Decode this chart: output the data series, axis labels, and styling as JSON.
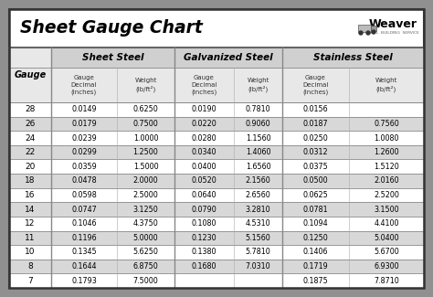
{
  "title": "Sheet Gauge Chart",
  "bg_outer": "#909090",
  "bg_inner": "#ffffff",
  "section_headers": [
    "Sheet Steel",
    "Galvanized Steel",
    "Stainless Steel"
  ],
  "gauges": [
    28,
    26,
    24,
    22,
    20,
    18,
    16,
    14,
    12,
    11,
    10,
    8,
    7
  ],
  "sheet_steel": [
    [
      "0.0149",
      "0.6250"
    ],
    [
      "0.0179",
      "0.7500"
    ],
    [
      "0.0239",
      "1.0000"
    ],
    [
      "0.0299",
      "1.2500"
    ],
    [
      "0.0359",
      "1.5000"
    ],
    [
      "0.0478",
      "2.0000"
    ],
    [
      "0.0598",
      "2.5000"
    ],
    [
      "0.0747",
      "3.1250"
    ],
    [
      "0.1046",
      "4.3750"
    ],
    [
      "0.1196",
      "5.0000"
    ],
    [
      "0.1345",
      "5.6250"
    ],
    [
      "0.1644",
      "6.8750"
    ],
    [
      "0.1793",
      "7.5000"
    ]
  ],
  "galvanized_steel": [
    [
      "0.0190",
      "0.7810"
    ],
    [
      "0.0220",
      "0.9060"
    ],
    [
      "0.0280",
      "1.1560"
    ],
    [
      "0.0340",
      "1.4060"
    ],
    [
      "0.0400",
      "1.6560"
    ],
    [
      "0.0520",
      "2.1560"
    ],
    [
      "0.0640",
      "2.6560"
    ],
    [
      "0.0790",
      "3.2810"
    ],
    [
      "0.1080",
      "4.5310"
    ],
    [
      "0.1230",
      "5.1560"
    ],
    [
      "0.1380",
      "5.7810"
    ],
    [
      "0.1680",
      "7.0310"
    ],
    [
      "",
      ""
    ]
  ],
  "stainless_steel": [
    [
      "0.0156",
      ""
    ],
    [
      "0.0187",
      "0.7560"
    ],
    [
      "0.0250",
      "1.0080"
    ],
    [
      "0.0312",
      "1.2600"
    ],
    [
      "0.0375",
      "1.5120"
    ],
    [
      "0.0500",
      "2.0160"
    ],
    [
      "0.0625",
      "2.5200"
    ],
    [
      "0.0781",
      "3.1500"
    ],
    [
      "0.1094",
      "4.4100"
    ],
    [
      "0.1250",
      "5.0400"
    ],
    [
      "0.1406",
      "5.6700"
    ],
    [
      "0.1719",
      "6.9300"
    ],
    [
      "0.1875",
      "7.8710"
    ]
  ],
  "row_colors": [
    "#ffffff",
    "#d8d8d8"
  ],
  "header_bg": "#d0d0d0",
  "subheader_bg": "#e8e8e8",
  "title_area_bg": "#ffffff",
  "border_color": "#555555",
  "line_color": "#888888",
  "text_dark": "#000000",
  "text_gray": "#444444"
}
